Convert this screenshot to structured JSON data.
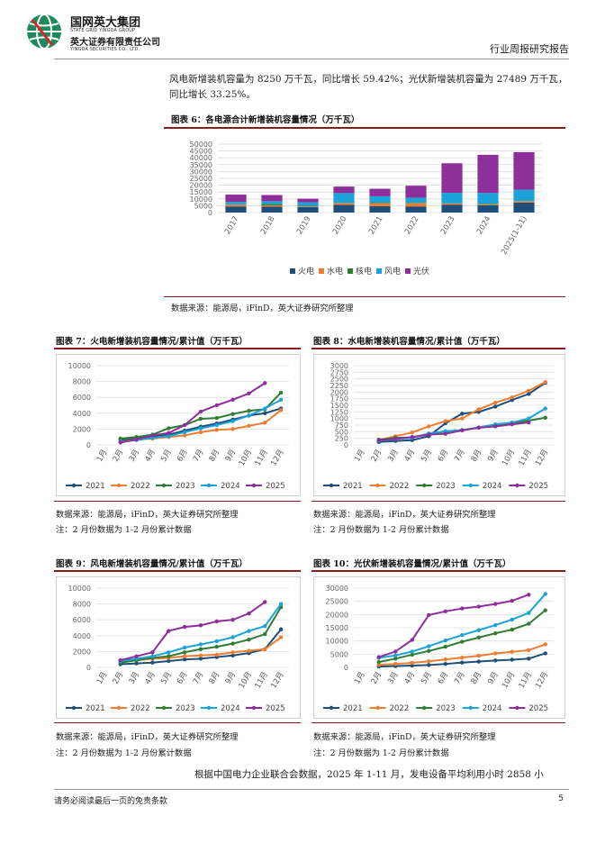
{
  "header": {
    "logo_cn_1": "国网英大集团",
    "logo_en_1": "STATE GRID YINGDA GROUP",
    "logo_cn_2": "英大证券有限责任公司",
    "logo_en_2": "YINGDA SECURITIES CO., LTD.",
    "report_type": "行业周报研究报告"
  },
  "intro_text": "风电新增装机容量为 8250 万千瓦，同比增长 59.42%；光伏新增装机容量为 27489 万千瓦，同比增长 33.25%。",
  "figures": {
    "fig6": {
      "title": "图表 6：各电源合计新增装机容量情况（万千瓦）",
      "source": "数据来源：能源局，iFinD，英大证券研究所整理"
    },
    "fig7": {
      "title": "图表 7：火电新增装机容量情况/累计值（万千瓦）",
      "source": "数据来源：能源局，iFinD，英大证券研究所整理",
      "note": "注：2 月份数据为 1-2 月份累计数据"
    },
    "fig8": {
      "title": "图表 8：水电新增装机容量情况/累计值（万千瓦）",
      "source": "数据来源：能源局，iFinD，英大证券研究所整理",
      "note": "注：2 月份数据为 1-2 月份累计数据"
    },
    "fig9": {
      "title": "图表 9：风电新增装机容量情况/累计值（万千瓦）",
      "source": "数据来源：能源局，iFinD，英大证券研究所整理",
      "note": "注：2 月份数据为 1-2 月份累计数据"
    },
    "fig10": {
      "title": "图表 10：光伏新增装机容量情况/累计值（万千瓦）",
      "source": "数据来源：能源局，iFinD，英大证券研究所整理",
      "note": "注：2 月份数据为 1-2 月份累计数据"
    }
  },
  "closing_text": "根据中国电力企业联合会数据，2025 年 1-11 月，发电设备平均利用小时 2858 小",
  "footer": {
    "disclaimer": "请务必阅读最后一页的免责条款",
    "page_number": "5"
  },
  "colors": {
    "series": [
      "#1f4e79",
      "#ed7d31",
      "#2e7d32",
      "#1aa3d9",
      "#8e2e9a"
    ],
    "accent": "#8a1c1c"
  },
  "chart_data": [
    {
      "id": "fig6",
      "type": "bar",
      "stacked": true,
      "categories": [
        "2017",
        "2018",
        "2019",
        "2020",
        "2021",
        "2022",
        "2023",
        "2024",
        "2025(1-11)"
      ],
      "ylim": [
        0,
        50000
      ],
      "yticks": [
        0,
        5000,
        10000,
        15000,
        20000,
        25000,
        30000,
        35000,
        40000,
        45000,
        50000
      ],
      "grid": true,
      "legend": "bottom",
      "series": [
        {
          "name": "火电",
          "values": [
            4500,
            4400,
            4100,
            5600,
            4600,
            4500,
            5800,
            5300,
            7300
          ]
        },
        {
          "name": "水电",
          "values": [
            1300,
            900,
            400,
            1300,
            2300,
            2400,
            900,
            700,
            1000
          ]
        },
        {
          "name": "核电",
          "values": [
            200,
            900,
            400,
            100,
            300,
            200,
            100,
            400,
            100
          ]
        },
        {
          "name": "风电",
          "values": [
            1800,
            2100,
            2600,
            7200,
            4700,
            3800,
            7600,
            8000,
            8250
          ]
        },
        {
          "name": "光伏",
          "values": [
            5300,
            4500,
            2600,
            4800,
            5500,
            8700,
            21600,
            27800,
            27489
          ]
        }
      ]
    },
    {
      "id": "fig7",
      "type": "line",
      "categories": [
        "1月",
        "2月",
        "3月",
        "4月",
        "5月",
        "6月",
        "7月",
        "8月",
        "9月",
        "10月",
        "11月",
        "12月"
      ],
      "ylim": [
        0,
        10000
      ],
      "yticks": [
        0,
        2000,
        4000,
        6000,
        8000,
        10000
      ],
      "legend": "bottom",
      "series": [
        {
          "name": "2021",
          "values": [
            null,
            600,
            900,
            1000,
            1300,
            1800,
            2300,
            2700,
            3200,
            3700,
            4000,
            4600
          ]
        },
        {
          "name": "2022",
          "values": [
            null,
            400,
            700,
            800,
            1000,
            1200,
            1600,
            1900,
            2000,
            2400,
            2800,
            4400
          ]
        },
        {
          "name": "2023",
          "values": [
            null,
            800,
            1000,
            1300,
            2100,
            2500,
            3300,
            3400,
            3900,
            4300,
            4500,
            6600
          ]
        },
        {
          "name": "2024",
          "values": [
            null,
            400,
            600,
            900,
            1100,
            1600,
            2100,
            2500,
            3000,
            3700,
            4600,
            5700
          ]
        },
        {
          "name": "2025",
          "values": [
            null,
            300,
            700,
            1200,
            1500,
            2500,
            4200,
            5000,
            5700,
            6500,
            7800,
            null
          ]
        }
      ]
    },
    {
      "id": "fig8",
      "type": "line",
      "categories": [
        "1月",
        "2月",
        "3月",
        "4月",
        "5月",
        "6月",
        "7月",
        "8月",
        "9月",
        "10月",
        "11月",
        "12月"
      ],
      "ylim": [
        0,
        3000
      ],
      "yticks": [
        0,
        250,
        500,
        750,
        1000,
        1250,
        1500,
        1750,
        2000,
        2250,
        2500,
        2750,
        3000
      ],
      "legend": "bottom",
      "series": [
        {
          "name": "2021",
          "values": [
            null,
            110,
            150,
            180,
            330,
            820,
            1180,
            1250,
            1450,
            1700,
            1930,
            2350
          ]
        },
        {
          "name": "2022",
          "values": [
            null,
            180,
            330,
            470,
            700,
            900,
            1000,
            1350,
            1600,
            1800,
            2050,
            2380
          ]
        },
        {
          "name": "2023",
          "values": [
            null,
            200,
            270,
            280,
            420,
            500,
            560,
            650,
            720,
            820,
            920,
            1030
          ]
        },
        {
          "name": "2024",
          "values": [
            null,
            160,
            220,
            270,
            430,
            520,
            560,
            660,
            780,
            850,
            1000,
            1380
          ]
        },
        {
          "name": "2025",
          "values": [
            null,
            180,
            230,
            300,
            390,
            420,
            550,
            650,
            700,
            780,
            850,
            null
          ]
        }
      ]
    },
    {
      "id": "fig9",
      "type": "line",
      "categories": [
        "1月",
        "2月",
        "3月",
        "4月",
        "5月",
        "6月",
        "7月",
        "8月",
        "9月",
        "10月",
        "11月",
        "12月"
      ],
      "ylim": [
        0,
        10000
      ],
      "yticks": [
        0,
        2000,
        4000,
        6000,
        8000,
        10000
      ],
      "legend": "bottom",
      "series": [
        {
          "name": "2021",
          "values": [
            null,
            400,
            500,
            600,
            800,
            1000,
            1100,
            1300,
            1500,
            1800,
            2300,
            4800
          ]
        },
        {
          "name": "2022",
          "values": [
            null,
            700,
            900,
            1100,
            1200,
            1400,
            1500,
            1600,
            1900,
            2100,
            2300,
            3800
          ]
        },
        {
          "name": "2023",
          "values": [
            null,
            600,
            900,
            1200,
            1400,
            1900,
            2300,
            2600,
            3000,
            3500,
            4200,
            7600
          ]
        },
        {
          "name": "2024",
          "values": [
            null,
            800,
            1100,
            1400,
            1900,
            2500,
            2900,
            3300,
            3800,
            4600,
            5200,
            8000
          ]
        },
        {
          "name": "2025",
          "values": [
            null,
            900,
            1400,
            1900,
            4600,
            5100,
            5300,
            5800,
            6000,
            6800,
            8250,
            null
          ]
        }
      ]
    },
    {
      "id": "fig10",
      "type": "line",
      "categories": [
        "1月",
        "2月",
        "3月",
        "4月",
        "5月",
        "6月",
        "7月",
        "8月",
        "9月",
        "10月",
        "11月",
        "12月"
      ],
      "ylim": [
        0,
        30000
      ],
      "yticks": [
        0,
        5000,
        10000,
        15000,
        20000,
        25000,
        30000
      ],
      "legend": "bottom",
      "series": [
        {
          "name": "2021",
          "values": [
            null,
            300,
            500,
            700,
            900,
            1300,
            1800,
            2200,
            2600,
            2900,
            3300,
            5300
          ]
        },
        {
          "name": "2022",
          "values": [
            null,
            1000,
            1300,
            1700,
            2300,
            3000,
            3700,
            4400,
            5300,
            5900,
            6500,
            8700
          ]
        },
        {
          "name": "2023",
          "values": [
            null,
            2000,
            3300,
            4800,
            6200,
            7800,
            9700,
            11300,
            12900,
            14300,
            16500,
            21600
          ]
        },
        {
          "name": "2024",
          "values": [
            null,
            3600,
            4500,
            6000,
            8000,
            10200,
            12200,
            14100,
            16000,
            18100,
            20600,
            27800
          ]
        },
        {
          "name": "2025",
          "values": [
            null,
            3900,
            6000,
            10400,
            19800,
            21200,
            22300,
            23000,
            24000,
            25200,
            27489,
            null
          ]
        }
      ]
    }
  ]
}
